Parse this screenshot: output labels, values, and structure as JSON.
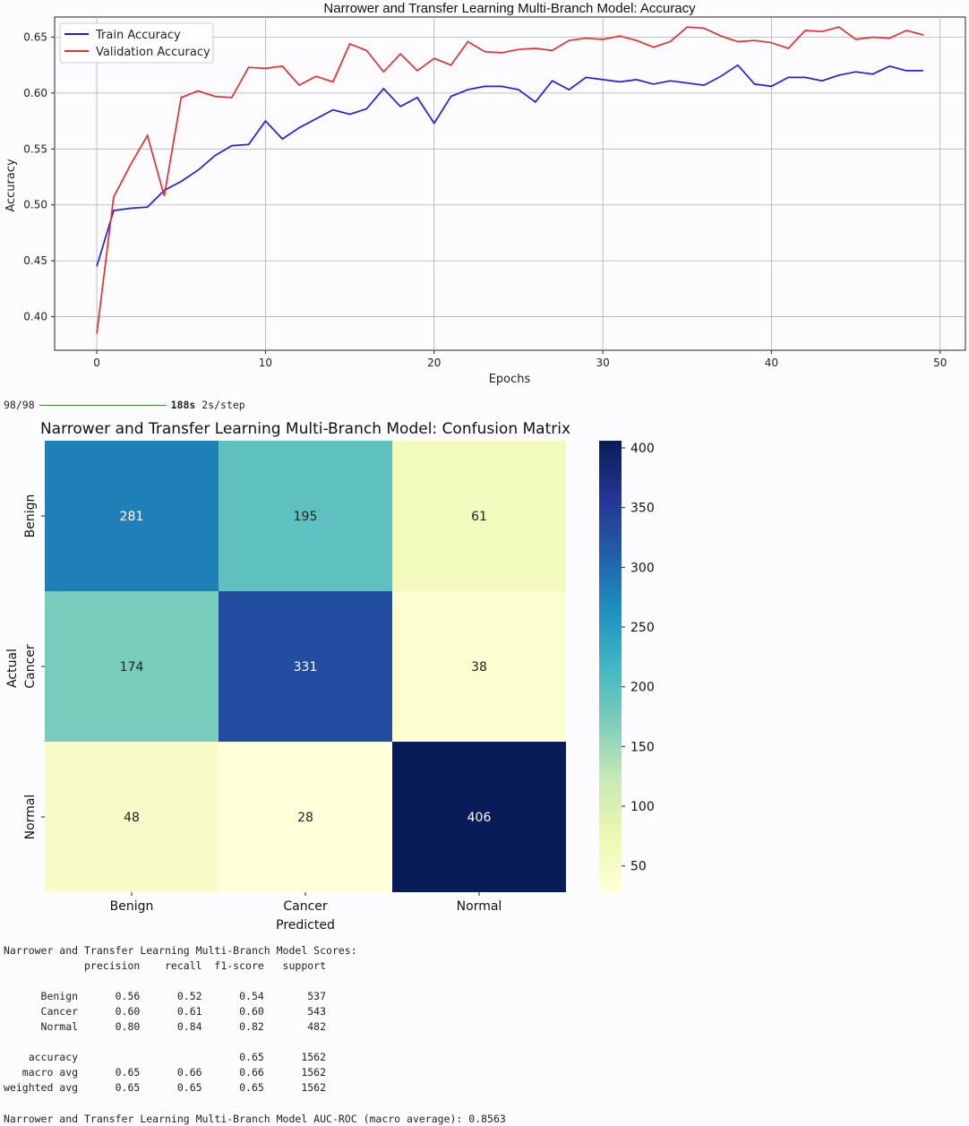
{
  "chart_data": [
    {
      "type": "line",
      "title": "Narrower and Transfer Learning Multi-Branch Model: Accuracy",
      "xlabel": "Epochs",
      "ylabel": "Accuracy",
      "xlim": [
        -2.5,
        51.5
      ],
      "ylim": [
        0.37,
        0.668
      ],
      "xticks": [
        0,
        10,
        20,
        30,
        40,
        50
      ],
      "yticks": [
        0.4,
        0.45,
        0.5,
        0.55,
        0.6,
        0.65
      ],
      "grid": true,
      "legend_position": "top-left",
      "x": [
        0,
        1,
        2,
        3,
        4,
        5,
        6,
        7,
        8,
        9,
        10,
        11,
        12,
        13,
        14,
        15,
        16,
        17,
        18,
        19,
        20,
        21,
        22,
        23,
        24,
        25,
        26,
        27,
        28,
        29,
        30,
        31,
        32,
        33,
        34,
        35,
        36,
        37,
        38,
        39,
        40,
        41,
        42,
        43,
        44,
        45,
        46,
        47,
        48,
        49
      ],
      "series": [
        {
          "name": "Train Accuracy",
          "color": "#1f1fe0",
          "values": [
            0.445,
            0.495,
            0.497,
            0.498,
            0.513,
            0.521,
            0.531,
            0.544,
            0.553,
            0.554,
            0.575,
            0.559,
            0.569,
            0.577,
            0.585,
            0.581,
            0.586,
            0.604,
            0.588,
            0.596,
            0.573,
            0.597,
            0.603,
            0.606,
            0.606,
            0.603,
            0.592,
            0.611,
            0.603,
            0.614,
            0.612,
            0.61,
            0.612,
            0.608,
            0.611,
            0.609,
            0.607,
            0.615,
            0.625,
            0.608,
            0.606,
            0.614,
            0.614,
            0.611,
            0.616,
            0.619,
            0.617,
            0.624,
            0.62,
            0.62
          ]
        },
        {
          "name": "Validation Accuracy",
          "color": "#e03030",
          "values": [
            0.385,
            0.507,
            0.536,
            0.562,
            0.508,
            0.596,
            0.602,
            0.597,
            0.596,
            0.623,
            0.622,
            0.624,
            0.607,
            0.615,
            0.61,
            0.644,
            0.638,
            0.619,
            0.635,
            0.62,
            0.631,
            0.625,
            0.646,
            0.637,
            0.636,
            0.639,
            0.64,
            0.638,
            0.647,
            0.649,
            0.648,
            0.651,
            0.647,
            0.641,
            0.646,
            0.659,
            0.658,
            0.651,
            0.646,
            0.647,
            0.645,
            0.64,
            0.656,
            0.655,
            0.659,
            0.648,
            0.65,
            0.649,
            0.656,
            0.652
          ]
        }
      ]
    },
    {
      "type": "heatmap",
      "title": "Narrower and Transfer Learning Multi-Branch Model: Confusion Matrix",
      "xlabel": "Predicted",
      "ylabel": "Actual",
      "x_categories": [
        "Benign",
        "Cancer",
        "Normal"
      ],
      "y_categories": [
        "Benign",
        "Cancer",
        "Normal"
      ],
      "values": [
        [
          281,
          195,
          61
        ],
        [
          174,
          331,
          38
        ],
        [
          48,
          28,
          406
        ]
      ],
      "colormap": "YlGnBu",
      "colorbar_range": [
        28,
        406
      ],
      "colorbar_ticks": [
        50,
        100,
        150,
        200,
        250,
        300,
        350,
        400
      ]
    }
  ],
  "progress": {
    "step": "98/98",
    "time": "188s",
    "rate": "2s/step"
  },
  "report": {
    "title": "Narrower and Transfer Learning Multi-Branch Model Scores:",
    "headers": [
      "precision",
      "recall",
      "f1-score",
      "support"
    ],
    "rows": [
      {
        "label": "Benign",
        "values": [
          "0.56",
          "0.52",
          "0.54",
          "537"
        ]
      },
      {
        "label": "Cancer",
        "values": [
          "0.60",
          "0.61",
          "0.60",
          "543"
        ]
      },
      {
        "label": "Normal",
        "values": [
          "0.80",
          "0.84",
          "0.82",
          "482"
        ]
      }
    ],
    "summary": [
      {
        "label": "accuracy",
        "values": [
          "",
          "",
          "0.65",
          "1562"
        ]
      },
      {
        "label": "macro avg",
        "values": [
          "0.65",
          "0.66",
          "0.66",
          "1562"
        ]
      },
      {
        "label": "weighted avg",
        "values": [
          "0.65",
          "0.65",
          "0.65",
          "1562"
        ]
      }
    ],
    "auc_line": "Narrower and Transfer Learning Multi-Branch Model AUC-ROC (macro average): 0.8563"
  }
}
